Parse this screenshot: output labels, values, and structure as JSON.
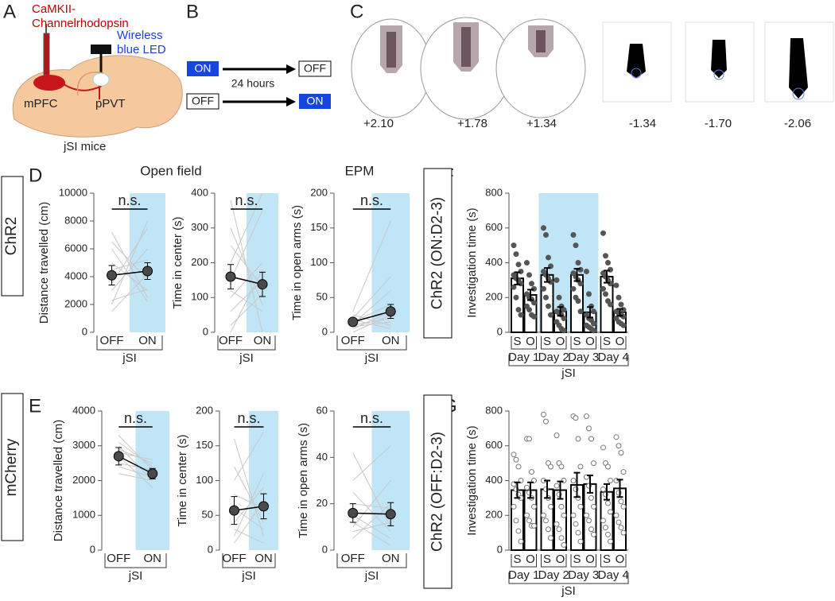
{
  "panel_labels": {
    "a": "A",
    "b": "B",
    "c": "C",
    "d": "D",
    "e": "E",
    "f": "F",
    "g": "G"
  },
  "panel_a": {
    "virus": [
      "CaMKII-",
      "Channelrhodopsin"
    ],
    "led": [
      "Wireless",
      "blue LED"
    ],
    "regions": [
      "mPFC",
      "pPVT"
    ],
    "caption": "jSI mice"
  },
  "panel_b": {
    "before": [
      "ON",
      "OFF"
    ],
    "after": [
      "OFF",
      "ON"
    ],
    "interval": "24 hours"
  },
  "panel_c": {
    "coordinates": [
      "+2.10",
      "+1.78",
      "+1.34",
      "-1.34",
      "-1.70",
      "-2.06"
    ]
  },
  "row_labels": [
    "ChR2",
    "mCherry"
  ],
  "section_titles": [
    "Open field",
    "EPM"
  ],
  "chart_data": [
    {
      "type": "line",
      "categories": [
        "OFF",
        "ON"
      ],
      "group_label": "jSI",
      "ylabel": "Distance travelled (cm)",
      "annotation": "n.s.",
      "ylim": [
        0,
        10000
      ],
      "yticks": [
        0,
        2000,
        4000,
        6000,
        8000,
        10000
      ],
      "shaded": [
        false,
        true
      ],
      "shade_color": "#bfe5f7",
      "mean": {
        "values": [
          4100,
          4400
        ],
        "errors": [
          700,
          600
        ],
        "color": "#4a4a4a"
      },
      "individual_color": "#c8c8c8",
      "individuals": [
        [
          2000,
          8000
        ],
        [
          5000,
          3000
        ],
        [
          7200,
          2500
        ],
        [
          3000,
          6000
        ],
        [
          4500,
          5200
        ],
        [
          6500,
          3800
        ],
        [
          1500,
          4200
        ],
        [
          3500,
          7500
        ],
        [
          6000,
          2200
        ],
        [
          2300,
          3100
        ]
      ]
    },
    {
      "type": "line",
      "categories": [
        "OFF",
        "ON"
      ],
      "group_label": "jSI",
      "ylabel": "Time in center (s)",
      "annotation": "n.s.",
      "ylim": [
        0,
        400
      ],
      "yticks": [
        0,
        100,
        200,
        300,
        400
      ],
      "shaded": [
        false,
        true
      ],
      "shade_color": "#bfe5f7",
      "mean": {
        "values": [
          160,
          138
        ],
        "errors": [
          35,
          35
        ],
        "color": "#4a4a4a"
      },
      "individual_color": "#c8c8c8",
      "individuals": [
        [
          380,
          0
        ],
        [
          300,
          80
        ],
        [
          250,
          130
        ],
        [
          200,
          400
        ],
        [
          150,
          350
        ],
        [
          120,
          60
        ],
        [
          100,
          200
        ],
        [
          60,
          150
        ],
        [
          20,
          110
        ],
        [
          0,
          180
        ]
      ]
    },
    {
      "type": "line",
      "categories": [
        "OFF",
        "ON"
      ],
      "group_label": "jSI",
      "ylabel": "Time in open arms (s)",
      "annotation": "n.s.",
      "ylim": [
        0,
        200
      ],
      "yticks": [
        0,
        50,
        100,
        150,
        200
      ],
      "shaded": [
        false,
        true
      ],
      "shade_color": "#bfe5f7",
      "mean": {
        "values": [
          15,
          30
        ],
        "errors": [
          5,
          10
        ],
        "color": "#4a4a4a"
      },
      "individual_color": "#c8c8c8",
      "individuals": [
        [
          30,
          160
        ],
        [
          20,
          80
        ],
        [
          15,
          40
        ],
        [
          10,
          20
        ],
        [
          5,
          30
        ],
        [
          25,
          10
        ],
        [
          12,
          60
        ],
        [
          8,
          15
        ],
        [
          18,
          5
        ],
        [
          0,
          25
        ]
      ]
    },
    {
      "type": "line",
      "categories": [
        "OFF",
        "ON"
      ],
      "group_label": "jSI",
      "ylabel": "Distance travelled (cm)",
      "annotation": "n.s.",
      "ylim": [
        0,
        4000
      ],
      "yticks": [
        0,
        1000,
        2000,
        3000,
        4000
      ],
      "shaded": [
        false,
        true
      ],
      "shade_color": "#bfe5f7",
      "mean": {
        "values": [
          2700,
          2200
        ],
        "errors": [
          250,
          150
        ],
        "color": "#4a4a4a"
      },
      "individual_color": "#c8c8c8",
      "individuals": [
        [
          3300,
          2300
        ],
        [
          3000,
          2000
        ],
        [
          2900,
          2500
        ],
        [
          2700,
          1800
        ],
        [
          2500,
          2300
        ],
        [
          2400,
          2100
        ],
        [
          2800,
          2600
        ],
        [
          2200,
          2000
        ],
        [
          3100,
          2400
        ]
      ]
    },
    {
      "type": "line",
      "categories": [
        "OFF",
        "ON"
      ],
      "group_label": "jSI",
      "ylabel": "Time in center (s)",
      "annotation": "n.s.",
      "ylim": [
        0,
        200
      ],
      "yticks": [
        0,
        50,
        100,
        150,
        200
      ],
      "shaded": [
        false,
        true
      ],
      "shade_color": "#bfe5f7",
      "mean": {
        "values": [
          57,
          63
        ],
        "errors": [
          20,
          18
        ],
        "color": "#4a4a4a"
      },
      "individual_color": "#c8c8c8",
      "individuals": [
        [
          160,
          20
        ],
        [
          120,
          40
        ],
        [
          100,
          170
        ],
        [
          80,
          60
        ],
        [
          60,
          30
        ],
        [
          40,
          90
        ],
        [
          30,
          10
        ],
        [
          20,
          110
        ],
        [
          10,
          70
        ]
      ]
    },
    {
      "type": "line",
      "categories": [
        "OFF",
        "ON"
      ],
      "group_label": "jSI",
      "ylabel": "Time in open arms (s)",
      "annotation": "n.s.",
      "ylim": [
        0,
        60
      ],
      "yticks": [
        0,
        20,
        40,
        60
      ],
      "shaded": [
        false,
        true
      ],
      "shade_color": "#bfe5f7",
      "mean": {
        "values": [
          16,
          15.5
        ],
        "errors": [
          4,
          5
        ],
        "color": "#4a4a4a"
      },
      "individual_color": "#c8c8c8",
      "individuals": [
        [
          42,
          10
        ],
        [
          30,
          45
        ],
        [
          25,
          8
        ],
        [
          20,
          18
        ],
        [
          15,
          5
        ],
        [
          10,
          30
        ],
        [
          8,
          12
        ],
        [
          5,
          20
        ],
        [
          12,
          2
        ]
      ]
    },
    {
      "type": "bar",
      "title": "ChR2 (ON:D2-3)",
      "categories": [
        "Day 1",
        "Day 2",
        "Day 3",
        "Day 4"
      ],
      "group_label": "jSI",
      "ylabel": "Investigation time (s)",
      "ylim": [
        0,
        800
      ],
      "yticks": [
        0,
        200,
        400,
        600,
        800
      ],
      "shaded": [
        false,
        true,
        true,
        false
      ],
      "shade_color": "#bfe5f7",
      "point_style": "filled",
      "point_color": "#555555",
      "series": [
        {
          "name": "S",
          "values": [
            310,
            330,
            330,
            320
          ],
          "errors": [
            35,
            40,
            35,
            35
          ],
          "points": [
            [
              500,
              450,
              390,
              350,
              330,
              310,
              300,
              280,
              260,
              200,
              130,
              100
            ],
            [
              600,
              560,
              430,
              380,
              350,
              330,
              310,
              290,
              250,
              200,
              150,
              100
            ],
            [
              560,
              500,
              400,
              360,
              340,
              320,
              300,
              280,
              250,
              200,
              180,
              120
            ],
            [
              570,
              440,
              400,
              360,
              340,
              320,
              300,
              280,
              250,
              220,
              180,
              160
            ]
          ]
        },
        {
          "name": "O",
          "values": [
            215,
            120,
            115,
            115
          ],
          "errors": [
            30,
            25,
            30,
            20
          ],
          "points": [
            [
              400,
              330,
              280,
              250,
              220,
              200,
              190,
              170,
              150,
              130,
              100,
              90
            ],
            [
              300,
              200,
              150,
              130,
              120,
              110,
              100,
              80,
              60,
              40,
              20,
              10
            ],
            [
              350,
              220,
              150,
              120,
              100,
              80,
              70,
              50,
              40,
              30,
              20,
              10
            ],
            [
              270,
              200,
              160,
              130,
              120,
              110,
              100,
              90,
              80,
              60,
              50,
              40
            ]
          ]
        }
      ]
    },
    {
      "type": "bar",
      "title": "ChR2 (OFF:D2-3)",
      "categories": [
        "Day 1",
        "Day 2",
        "Day 3",
        "Day 4"
      ],
      "group_label": "jSI",
      "ylabel": "Investigation time (s)",
      "ylim": [
        0,
        800
      ],
      "yticks": [
        0,
        200,
        400,
        600,
        800
      ],
      "shaded": [
        false,
        false,
        false,
        false
      ],
      "shade_color": "#bfe5f7",
      "point_style": "hollow",
      "point_color": "#777777",
      "series": [
        {
          "name": "S",
          "values": [
            345,
            350,
            375,
            335
          ],
          "errors": [
            45,
            50,
            70,
            45
          ],
          "points": [
            [
              550,
              520,
              480,
              400,
              380,
              350,
              320,
              300,
              250,
              170,
              110,
              50
            ],
            [
              780,
              740,
              500,
              480,
              400,
              350,
              300,
              250,
              200,
              170,
              120,
              70
            ],
            [
              770,
              760,
              640,
              480,
              400,
              350,
              300,
              250,
              200,
              150,
              100,
              50
            ],
            [
              590,
              500,
              480,
              400,
              350,
              320,
              270,
              220,
              170,
              130,
              90,
              50
            ]
          ]
        },
        {
          "name": "O",
          "values": [
            345,
            345,
            380,
            355
          ],
          "errors": [
            45,
            50,
            50,
            50
          ],
          "points": [
            [
              640,
              640,
              450,
              400,
              360,
              330,
              300,
              250,
              200,
              170,
              140,
              140
            ],
            [
              660,
              500,
              480,
              400,
              370,
              320,
              250,
              200,
              150,
              120,
              70,
              30
            ],
            [
              770,
              700,
              640,
              500,
              420,
              370,
              300,
              250,
              200,
              170,
              120,
              90
            ],
            [
              650,
              600,
              560,
              450,
              400,
              330,
              280,
              250,
              200,
              160,
              130,
              100
            ]
          ]
        }
      ]
    }
  ]
}
